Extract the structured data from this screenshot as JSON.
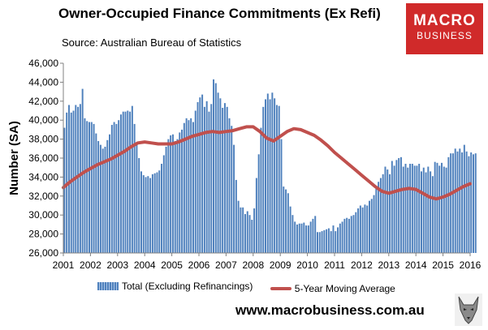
{
  "title": "Owner-Occupied Finance Commitments (Ex Refi)",
  "source": "Source: Australian  Bureau of Statistics",
  "logo": {
    "line1": "MACRO",
    "line2": "BUSINESS",
    "icon": "wolf-icon",
    "background": "#d02a2a"
  },
  "footer_url": "www.macrobusiness.com.au",
  "chart_data": {
    "type": "bar",
    "title": "Owner-Occupied Finance Commitments (Ex Refi)",
    "ylabel": "Number (SA)",
    "xlabel": "",
    "ylim": [
      26000,
      46000
    ],
    "xlim": [
      2001,
      2016
    ],
    "yticks": [
      "26,000",
      "28,000",
      "30,000",
      "32,000",
      "34,000",
      "36,000",
      "38,000",
      "40,000",
      "42,000",
      "44,000",
      "46,000"
    ],
    "xticks": [
      "2001",
      "2002",
      "2003",
      "2004",
      "2005",
      "2006",
      "2007",
      "2008",
      "2009",
      "2010",
      "2011",
      "2012",
      "2013",
      "2014",
      "2015",
      "2016"
    ],
    "grid": false,
    "legend": "bottom",
    "series": [
      {
        "name": "Total (Excluding Refinancings)",
        "kind": "bar",
        "color": "#4f81bd",
        "start": 2001.0,
        "step_years": 0.0833,
        "values": [
          39200,
          40800,
          41600,
          40800,
          41000,
          41600,
          41400,
          41700,
          43300,
          40200,
          39900,
          39800,
          39800,
          39600,
          38600,
          37800,
          37400,
          37000,
          37200,
          37900,
          38500,
          39500,
          39800,
          39600,
          40000,
          40600,
          40900,
          40900,
          41000,
          40900,
          41500,
          39600,
          37500,
          36000,
          34600,
          34200,
          34000,
          34100,
          33900,
          34300,
          34400,
          34500,
          34700,
          35400,
          36300,
          37200,
          38000,
          38400,
          38500,
          37800,
          38000,
          38700,
          39000,
          39700,
          40200,
          40000,
          40200,
          39800,
          41000,
          41900,
          42400,
          42700,
          41400,
          42000,
          40900,
          41700,
          44300,
          43900,
          42900,
          42300,
          41300,
          41800,
          41400,
          40200,
          39400,
          37400,
          33700,
          31500,
          30800,
          30800,
          30100,
          30400,
          30000,
          29500,
          30700,
          33900,
          36400,
          39200,
          41400,
          42200,
          42800,
          42200,
          42900,
          42300,
          41600,
          41500,
          38000,
          33000,
          32700,
          32300,
          30900,
          30000,
          29300,
          29000,
          29100,
          29100,
          29200,
          28900,
          28900,
          29300,
          29600,
          29900,
          28200,
          28200,
          28300,
          28400,
          28500,
          28600,
          28300,
          28900,
          28300,
          28700,
          29100,
          29300,
          29600,
          29700,
          29600,
          29900,
          30000,
          30300,
          30700,
          31000,
          30800,
          31100,
          31000,
          31500,
          31700,
          32100,
          32800,
          33500,
          33900,
          34300,
          35100,
          34800,
          34300,
          35700,
          35200,
          35800,
          36000,
          36100,
          35100,
          35400,
          35000,
          35400,
          35400,
          35200,
          35200,
          35400,
          34600,
          35000,
          34500,
          35100,
          34600,
          34100,
          35600,
          35500,
          35200,
          35500,
          35100,
          35000,
          36100,
          36500,
          36500,
          37000,
          36700,
          37000,
          36600,
          37400,
          36700,
          36200,
          36600,
          36400,
          36500
        ]
      },
      {
        "name": "5-Year Moving Average",
        "kind": "line",
        "color": "#c0504d",
        "x": [
          2001.0,
          2001.25,
          2001.5,
          2001.75,
          2002.0,
          2002.25,
          2002.5,
          2002.75,
          2003.0,
          2003.25,
          2003.5,
          2003.75,
          2004.0,
          2004.25,
          2004.5,
          2004.75,
          2005.0,
          2005.25,
          2005.5,
          2005.75,
          2006.0,
          2006.25,
          2006.5,
          2006.75,
          2007.0,
          2007.25,
          2007.5,
          2007.75,
          2008.0,
          2008.25,
          2008.5,
          2008.75,
          2009.0,
          2009.25,
          2009.5,
          2009.75,
          2010.0,
          2010.25,
          2010.5,
          2010.75,
          2011.0,
          2011.25,
          2011.5,
          2011.75,
          2012.0,
          2012.25,
          2012.5,
          2012.75,
          2013.0,
          2013.25,
          2013.5,
          2013.75,
          2014.0,
          2014.25,
          2014.5,
          2014.75,
          2015.0,
          2015.25,
          2015.5,
          2015.75,
          2016.0
        ],
        "values": [
          32900,
          33500,
          34000,
          34500,
          34900,
          35300,
          35600,
          35900,
          36300,
          36700,
          37200,
          37600,
          37700,
          37600,
          37500,
          37500,
          37500,
          37700,
          38000,
          38300,
          38500,
          38700,
          38800,
          38700,
          38800,
          38900,
          39100,
          39300,
          39300,
          38800,
          38100,
          37800,
          38300,
          38800,
          39100,
          39000,
          38700,
          38400,
          37900,
          37300,
          36600,
          36000,
          35400,
          34800,
          34200,
          33600,
          33000,
          32500,
          32300,
          32500,
          32700,
          32800,
          32700,
          32300,
          31900,
          31700,
          31900,
          32200,
          32600,
          33000,
          33300
        ]
      }
    ]
  }
}
